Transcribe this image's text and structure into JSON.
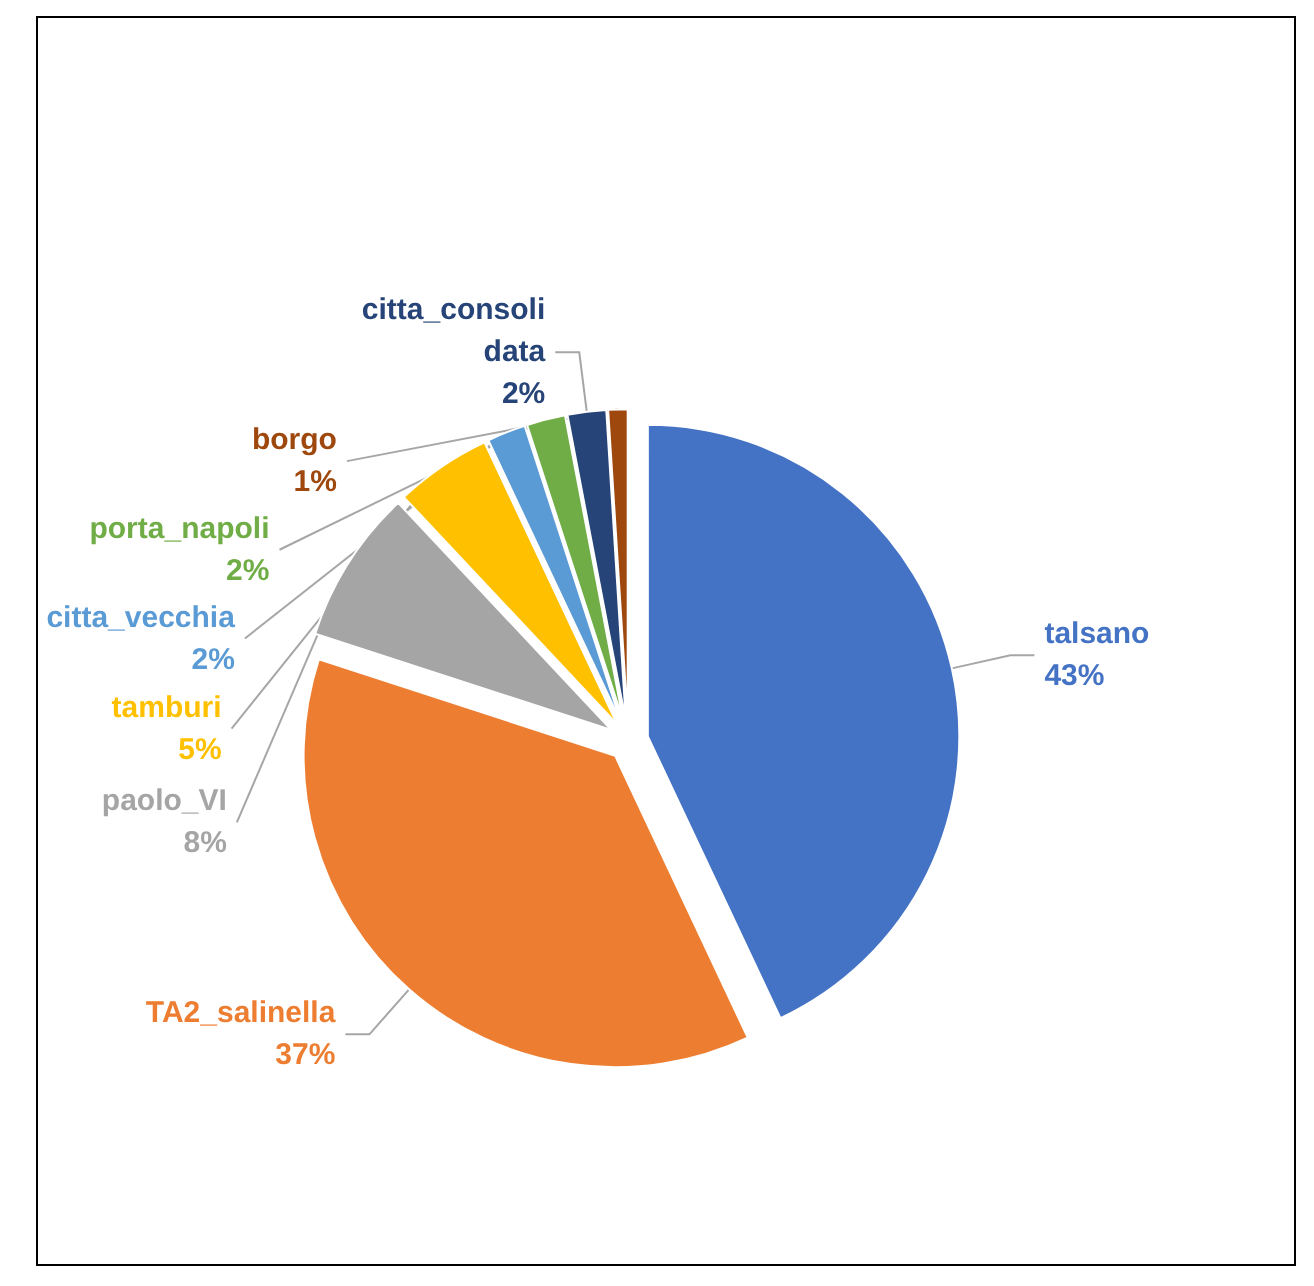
{
  "chart_data": {
    "type": "pie",
    "categories": [
      "talsano",
      "TA2_salinella",
      "paolo_VI",
      "tamburi",
      "citta_vecchia",
      "porta_napoli",
      "citta_consolidata",
      "borgo"
    ],
    "values": [
      43,
      37,
      8,
      5,
      2,
      2,
      2,
      1
    ],
    "colors": [
      "#4472c4",
      "#ed7d31",
      "#a5a5a5",
      "#ffc000",
      "#5b9bd5",
      "#70ad47",
      "#264478",
      "#9e480e"
    ],
    "value_labels": [
      "43%",
      "37%",
      "8%",
      "5%",
      "2%",
      "2%",
      "2%",
      "1%"
    ],
    "legend": false
  }
}
